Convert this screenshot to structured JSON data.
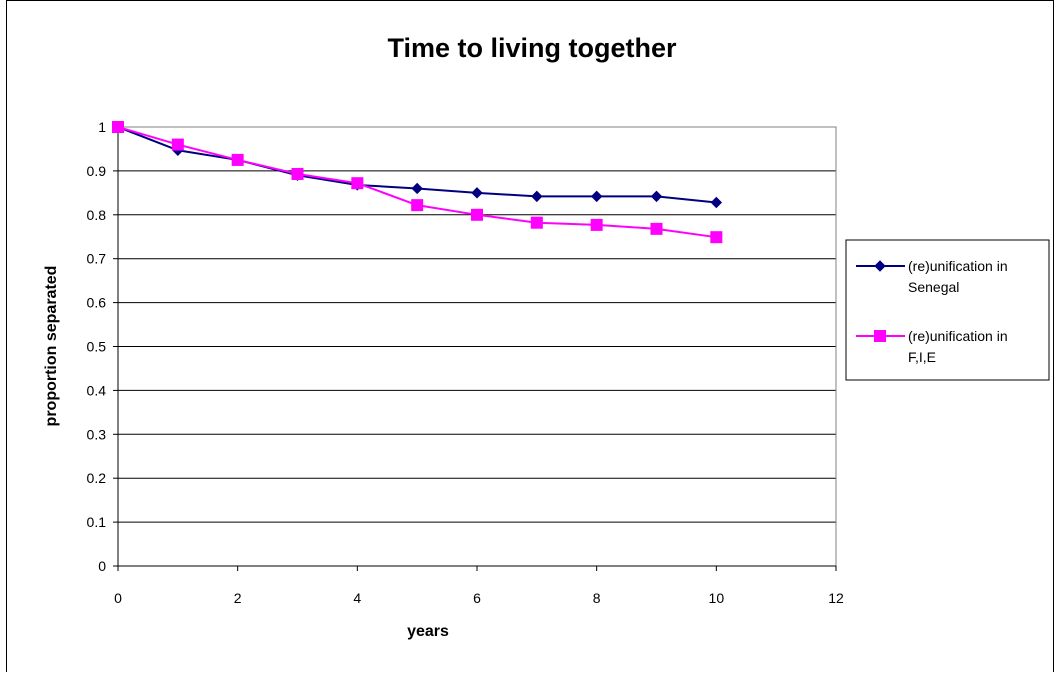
{
  "chart_data": {
    "type": "line",
    "title": "Time to living together",
    "xlabel": "years",
    "ylabel": "proportion separated",
    "xlim": [
      0,
      12
    ],
    "ylim": [
      0,
      1
    ],
    "xticks": [
      0,
      2,
      4,
      6,
      8,
      10,
      12
    ],
    "yticks": [
      0,
      0.1,
      0.2,
      0.3,
      0.4,
      0.5,
      0.6,
      0.7,
      0.8,
      0.9,
      1
    ],
    "grid": "horizontal",
    "legend_position": "right",
    "series": [
      {
        "name_lines": [
          "(re)unification in",
          "Senegal"
        ],
        "color": "#000080",
        "marker": "diamond",
        "x": [
          0,
          1,
          2,
          3,
          4,
          5,
          6,
          7,
          8,
          9,
          10
        ],
        "y": [
          1.0,
          0.947,
          0.925,
          0.89,
          0.868,
          0.86,
          0.85,
          0.842,
          0.842,
          0.842,
          0.828
        ]
      },
      {
        "name_lines": [
          "(re)unification in",
          "F,I,E"
        ],
        "color": "#ff00ff",
        "marker": "square",
        "x": [
          0,
          1,
          2,
          3,
          4,
          5,
          6,
          7,
          8,
          9,
          10
        ],
        "y": [
          1.0,
          0.96,
          0.925,
          0.893,
          0.872,
          0.822,
          0.8,
          0.782,
          0.777,
          0.768,
          0.749
        ]
      }
    ]
  }
}
